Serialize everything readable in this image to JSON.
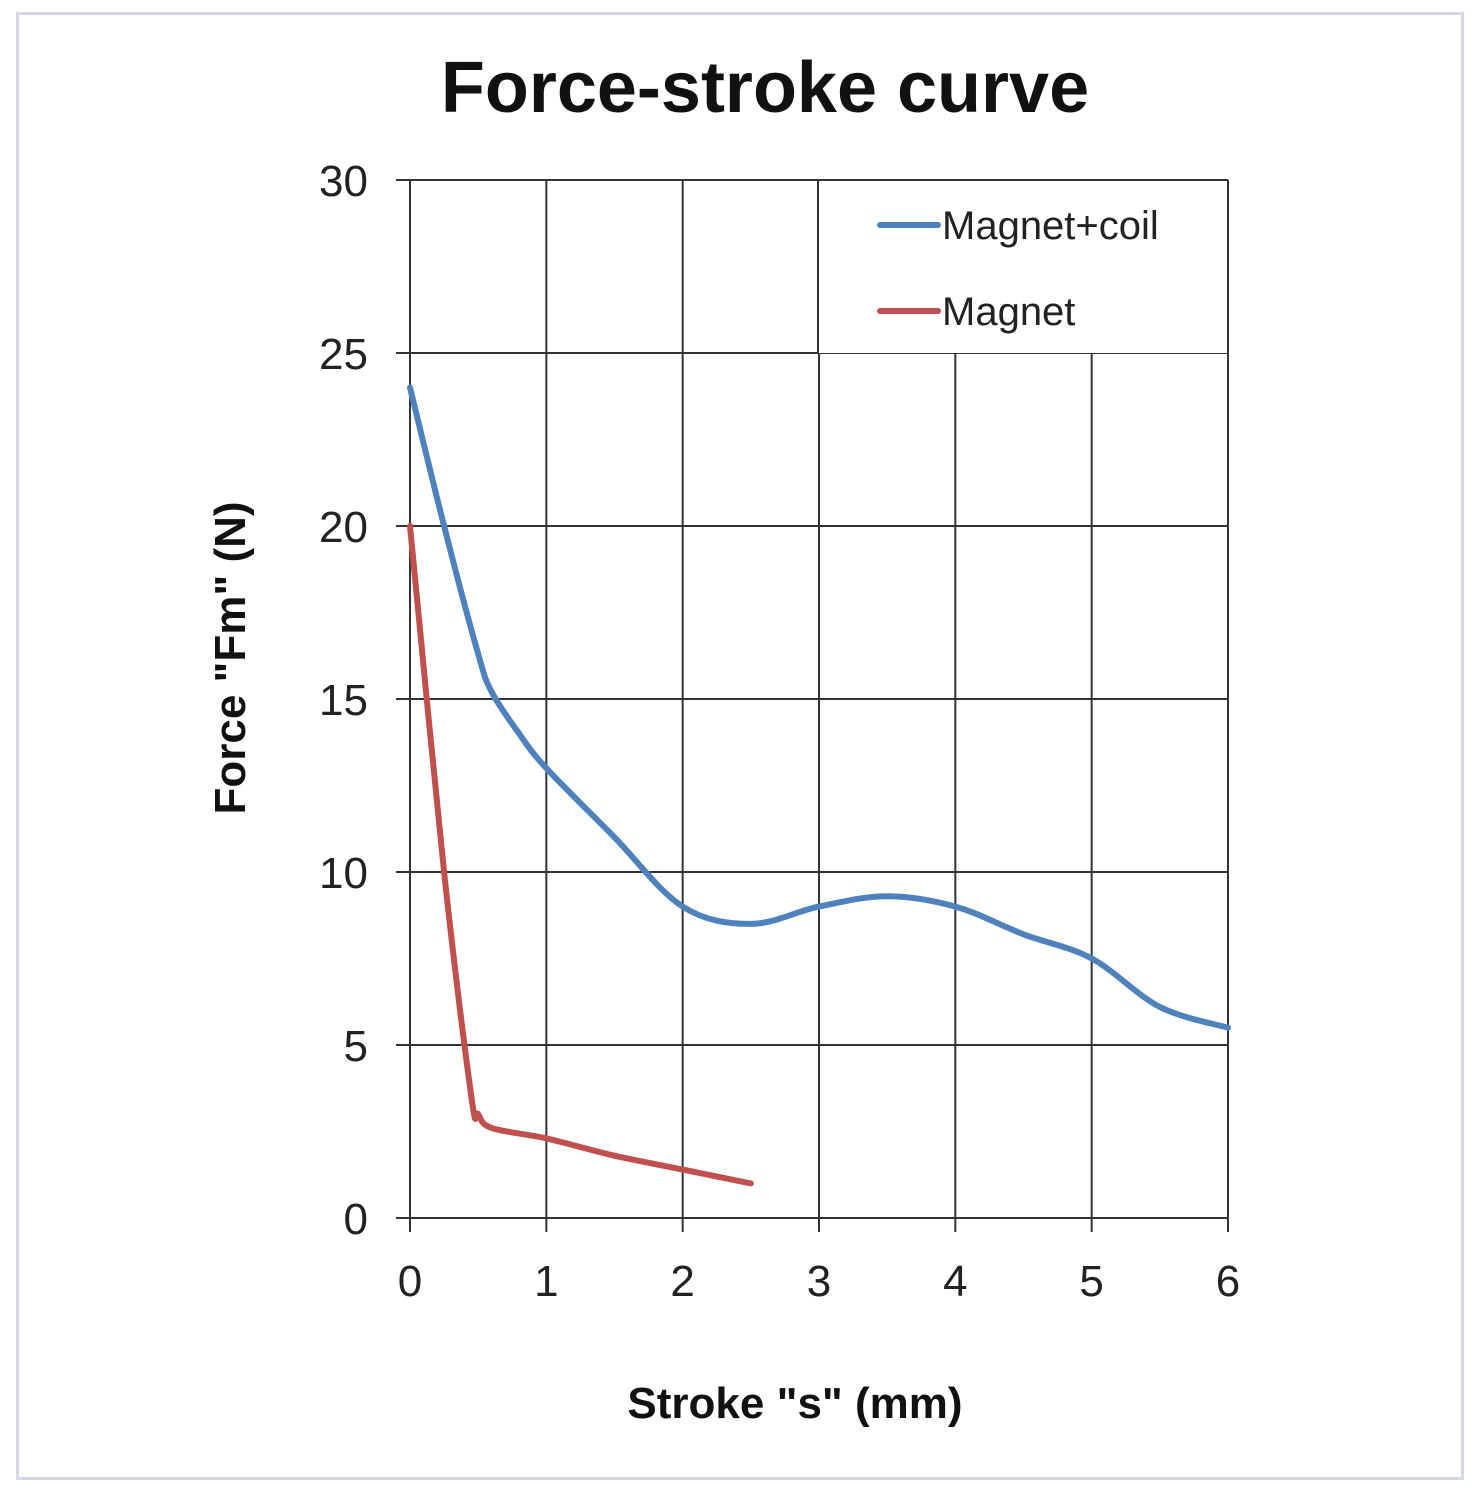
{
  "chart_data": {
    "type": "line",
    "title": "Force-stroke curve",
    "xlabel": "Stroke \"s\" (mm)",
    "ylabel": "Force \"Fm\"  (N)",
    "xlim": [
      0,
      6
    ],
    "ylim": [
      0,
      30
    ],
    "xticks": [
      "0",
      "1",
      "2",
      "3",
      "4",
      "5",
      "6"
    ],
    "yticks": [
      "0",
      "5",
      "10",
      "15",
      "20",
      "25",
      "30"
    ],
    "grid": true,
    "legend": "top-right",
    "series": [
      {
        "name": "Magnet+coil",
        "color": "#4f81bd",
        "x": [
          0,
          0.25,
          0.5,
          0.6,
          0.8,
          1.0,
          1.5,
          2.0,
          2.5,
          3.0,
          3.5,
          4.0,
          4.5,
          5.0,
          5.5,
          6.0
        ],
        "y": [
          24,
          20,
          16.3,
          15.2,
          14,
          13,
          11,
          9,
          8.5,
          9,
          9.3,
          9,
          8.2,
          7.5,
          6.1,
          5.5
        ]
      },
      {
        "name": "Magnet",
        "color": "#c0504d",
        "x": [
          0,
          0.25,
          0.45,
          0.5,
          0.6,
          1.0,
          1.5,
          2.0,
          2.5
        ],
        "y": [
          20,
          10,
          3.5,
          3,
          2.6,
          2.3,
          1.8,
          1.4,
          1.0
        ]
      }
    ]
  }
}
